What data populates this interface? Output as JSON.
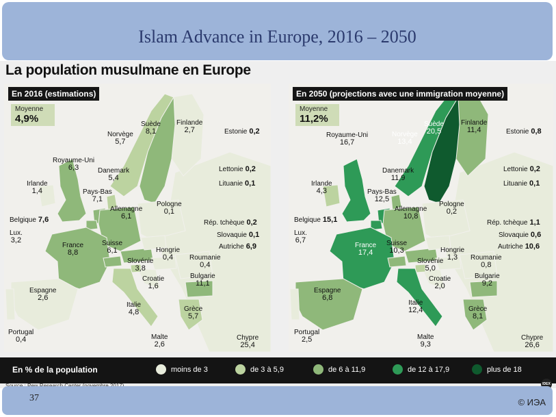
{
  "slide": {
    "title": "Islam Advance in Europe, 2016 – 2050",
    "number": "37",
    "copyright": "© ИЭА"
  },
  "infographic": {
    "title": "La population musulmane en Europe",
    "source": "Source : Pew Research Center (novembre 2017)",
    "logo_text": "IDEX",
    "legend": {
      "title": "En % de la population",
      "items": [
        {
          "label": "moins de 3",
          "color": "#e8ecdc"
        },
        {
          "label": "de 3 à 5,9",
          "color": "#bcd3a0"
        },
        {
          "label": "de 6 à 11,9",
          "color": "#8fb87a"
        },
        {
          "label": "de 12 à 17,9",
          "color": "#2e9a57"
        },
        {
          "label": "plus de 18",
          "color": "#0f5a2e"
        }
      ]
    },
    "panels": [
      {
        "tag": "En 2016 (estimations)",
        "average_label": "Moyenne",
        "average_value": "4,9%",
        "countries": {
          "suede": {
            "name": "Suède",
            "value": "8,1"
          },
          "norvege": {
            "name": "Norvège",
            "value": "5,7"
          },
          "finlande": {
            "name": "Finlande",
            "value": "2,7"
          },
          "ru": {
            "name": "Royaume-Uni",
            "value": "6,3"
          },
          "irlande": {
            "name": "Irlande",
            "value": "1,4"
          },
          "danemark": {
            "name": "Danemark",
            "value": "5,4"
          },
          "paysbas": {
            "name": "Pays-Bas",
            "value": "7,1"
          },
          "allemagne": {
            "name": "Allemagne",
            "value": "6,1"
          },
          "pologne": {
            "name": "Pologne",
            "value": "0,1"
          },
          "france": {
            "name": "France",
            "value": "8,8"
          },
          "suisse": {
            "name": "Suisse",
            "value": "6,1"
          },
          "hongrie": {
            "name": "Hongrie",
            "value": "0,4"
          },
          "roumanie": {
            "name": "Roumanie",
            "value": "0,4"
          },
          "slovenie": {
            "name": "Slovénie",
            "value": "3,8"
          },
          "croatie": {
            "name": "Croatie",
            "value": "1,6"
          },
          "bulgarie": {
            "name": "Bulgarie",
            "value": "11,1"
          },
          "espagne": {
            "name": "Espagne",
            "value": "2,6"
          },
          "italie": {
            "name": "Italie",
            "value": "4,8"
          },
          "grece": {
            "name": "Grèce",
            "value": "5,7"
          },
          "portugal": {
            "name": "Portugal",
            "value": "0,4"
          },
          "malte": {
            "name": "Malte",
            "value": "2,6"
          },
          "chypre": {
            "name": "Chypre",
            "value": "25,4"
          },
          "lux": {
            "name": "Lux.",
            "value": "3,2"
          },
          "belgique": {
            "name": "Belgique",
            "value": "7,6"
          },
          "estonie": {
            "name": "Estonie",
            "value": "0,2"
          },
          "lettonie": {
            "name": "Lettonie",
            "value": "0,2"
          },
          "lituanie": {
            "name": "Lituanie",
            "value": "0,1"
          },
          "tcheque": {
            "name": "Rép. tchèque",
            "value": "0,2"
          },
          "slovaquie": {
            "name": "Slovaquie",
            "value": "0,1"
          },
          "autriche": {
            "name": "Autriche",
            "value": "6,9"
          }
        }
      },
      {
        "tag": "En 2050 (projections avec une immigration moyenne)",
        "average_label": "Moyenne",
        "average_value": "11,2%",
        "countries": {
          "suede": {
            "name": "Suède",
            "value": "20,5"
          },
          "norvege": {
            "name": "Norvège",
            "value": "13,4"
          },
          "finlande": {
            "name": "Finlande",
            "value": "11,4"
          },
          "ru": {
            "name": "Royaume-Uni",
            "value": "16,7"
          },
          "irlande": {
            "name": "Irlande",
            "value": "4,3"
          },
          "danemark": {
            "name": "Danemark",
            "value": "11,9"
          },
          "paysbas": {
            "name": "Pays-Bas",
            "value": "12,5"
          },
          "allemagne": {
            "name": "Allemagne",
            "value": "10,8"
          },
          "pologne": {
            "name": "Pologne",
            "value": "0,2"
          },
          "france": {
            "name": "France",
            "value": "17,4"
          },
          "suisse": {
            "name": "Suisse",
            "value": "10,3"
          },
          "hongrie": {
            "name": "Hongrie",
            "value": "1,3"
          },
          "roumanie": {
            "name": "Roumanie",
            "value": "0,8"
          },
          "slovenie": {
            "name": "Slovénie",
            "value": "5,0"
          },
          "croatie": {
            "name": "Croatie",
            "value": "2,0"
          },
          "bulgarie": {
            "name": "Bulgarie",
            "value": "9,2"
          },
          "espagne": {
            "name": "Espagne",
            "value": "6,8"
          },
          "italie": {
            "name": "Italie",
            "value": "12,4"
          },
          "grece": {
            "name": "Grèce",
            "value": "8,1"
          },
          "portugal": {
            "name": "Portugal",
            "value": "2,5"
          },
          "malte": {
            "name": "Malte",
            "value": "9,3"
          },
          "chypre": {
            "name": "Chypre",
            "value": "26,6"
          },
          "lux": {
            "name": "Lux.",
            "value": "6,7"
          },
          "belgique": {
            "name": "Belgique",
            "value": "15,1"
          },
          "estonie": {
            "name": "Estonie",
            "value": "0,8"
          },
          "lettonie": {
            "name": "Lettonie",
            "value": "0,2"
          },
          "lituanie": {
            "name": "Lituanie",
            "value": "0,1"
          },
          "tcheque": {
            "name": "Rép. tchèque",
            "value": "1,1"
          },
          "slovaquie": {
            "name": "Slovaquie",
            "value": "0,6"
          },
          "autriche": {
            "name": "Autriche",
            "value": "10,6"
          }
        }
      }
    ]
  }
}
